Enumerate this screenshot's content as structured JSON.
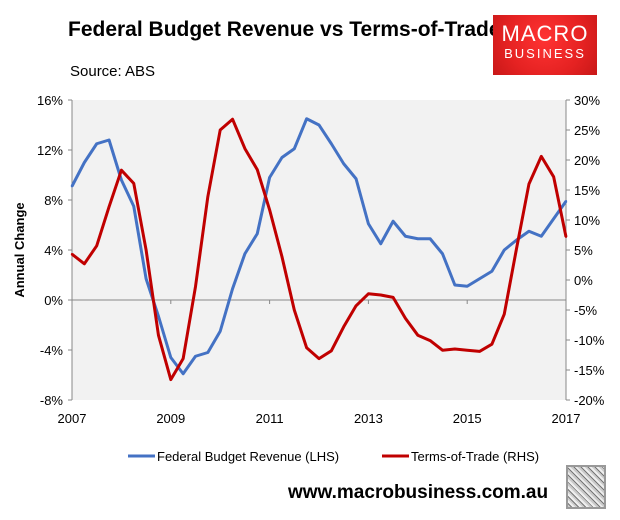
{
  "header": {
    "title": "Federal Budget Revenue vs Terms-of-Trade",
    "source": "Source: ABS"
  },
  "logo": {
    "line1": "MACRO",
    "line2": "BUSINESS",
    "color": "#e52222"
  },
  "footer": {
    "url": "www.macrobusiness.com.au",
    "image": "wolf-icon"
  },
  "chart_data": {
    "type": "line",
    "ylabel": "Annual Change",
    "x_tick_labels": [
      "2007",
      "2009",
      "2011",
      "2013",
      "2015",
      "2017"
    ],
    "x_range": [
      2007,
      2017
    ],
    "y_left": {
      "range": [
        -8,
        16
      ],
      "ticks": [
        "-8%",
        "-4%",
        "0%",
        "4%",
        "8%",
        "12%",
        "16%"
      ],
      "tick_values": [
        -8,
        -4,
        0,
        4,
        8,
        12,
        16
      ]
    },
    "y_right": {
      "range": [
        -20,
        30
      ],
      "ticks": [
        "-20%",
        "-15%",
        "-10%",
        "-5%",
        "0%",
        "5%",
        "10%",
        "15%",
        "20%",
        "25%",
        "30%"
      ],
      "tick_values": [
        -20,
        -15,
        -10,
        -5,
        0,
        5,
        10,
        15,
        20,
        25,
        30
      ]
    },
    "frequency": "quarterly",
    "grid": false,
    "legend_position": "bottom",
    "series": [
      {
        "name": "Federal Budget Revenue (LHS)",
        "axis": "left",
        "color": "#4472c4",
        "values": [
          9.1,
          11.0,
          12.5,
          12.8,
          9.6,
          7.5,
          1.7,
          -1.3,
          -4.6,
          -5.9,
          -4.5,
          -4.2,
          -2.5,
          0.9,
          3.7,
          5.3,
          9.8,
          11.4,
          12.1,
          14.5,
          14.0,
          12.5,
          10.9,
          9.7,
          6.1,
          4.5,
          6.3,
          5.1,
          4.9,
          4.9,
          3.7,
          1.2,
          1.1,
          1.7,
          2.3,
          4.0,
          4.8,
          5.5,
          5.1,
          6.5,
          7.9
        ]
      },
      {
        "name": "Terms-of-Trade (RHS)",
        "axis": "right",
        "color": "#c00000",
        "values": [
          4.3,
          2.7,
          5.7,
          12.2,
          18.3,
          16.1,
          5.0,
          -9.2,
          -16.6,
          -13.1,
          -1.1,
          13.9,
          25.0,
          26.8,
          21.9,
          18.4,
          11.7,
          3.9,
          -5.0,
          -11.3,
          -13.1,
          -11.8,
          -7.8,
          -4.3,
          -2.3,
          -2.5,
          -2.9,
          -6.4,
          -9.2,
          -10.1,
          -11.7,
          -11.5,
          -11.7,
          -11.9,
          -10.7,
          -5.7,
          5.3,
          16.0,
          20.6,
          17.2,
          7.2
        ]
      }
    ]
  }
}
